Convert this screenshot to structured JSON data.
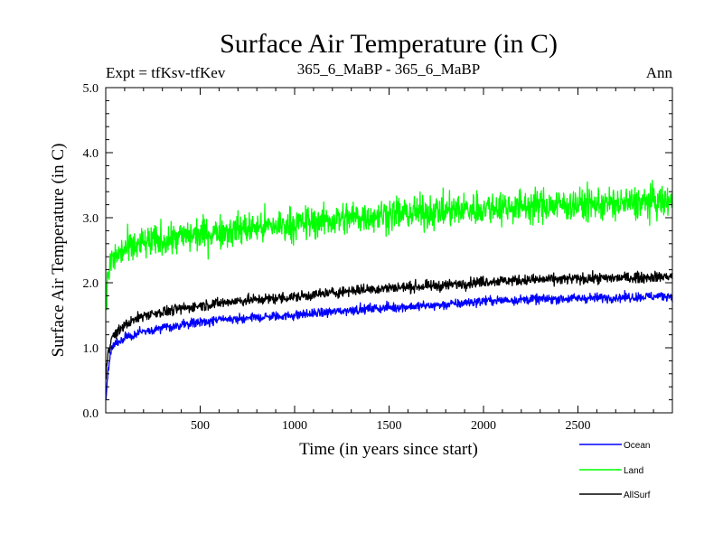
{
  "chart_data": {
    "type": "line",
    "title": "Surface Air Temperature (in C)",
    "subtitle_left": "Expt = tfKsv-tfKev",
    "subtitle_center": "365_6_MaBP - 365_6_MaBP",
    "subtitle_right": "Ann",
    "xlabel": "Time (in years since start)",
    "ylabel": "Surface Air Temperature (in C)",
    "xlim": [
      0,
      3000
    ],
    "ylim": [
      0,
      5
    ],
    "x_ticks": [
      500,
      1000,
      1500,
      2000,
      2500
    ],
    "x_tick_labels": [
      "500",
      "1000",
      "1500",
      "2000",
      "2500"
    ],
    "y_ticks": [
      0,
      1,
      2,
      3,
      4,
      5
    ],
    "y_tick_labels": [
      "0.0",
      "1.0",
      "2.0",
      "3.0",
      "4.0",
      "5.0"
    ],
    "legend_position": "bottom-right, below plot",
    "series": [
      {
        "name": "Ocean",
        "color": "#0000ff",
        "x": [
          0,
          10,
          30,
          50,
          100,
          200,
          300,
          500,
          700,
          1000,
          1300,
          1500,
          1800,
          2000,
          2200,
          2500,
          2800,
          3000
        ],
        "values": [
          0.15,
          0.6,
          1.0,
          1.05,
          1.15,
          1.25,
          1.3,
          1.4,
          1.45,
          1.5,
          1.58,
          1.62,
          1.66,
          1.72,
          1.74,
          1.76,
          1.78,
          1.8
        ],
        "noise": 0.07
      },
      {
        "name": "Land",
        "color": "#00ff00",
        "x": [
          0,
          10,
          30,
          50,
          100,
          200,
          300,
          500,
          700,
          1000,
          1300,
          1500,
          1800,
          2000,
          2200,
          2500,
          2800,
          3000
        ],
        "values": [
          1.5,
          2.1,
          2.35,
          2.4,
          2.5,
          2.6,
          2.65,
          2.75,
          2.82,
          2.9,
          3.0,
          3.05,
          3.1,
          3.15,
          3.18,
          3.2,
          3.22,
          3.25
        ],
        "noise": 0.25
      },
      {
        "name": "AllSurf",
        "color": "#000000",
        "x": [
          0,
          10,
          30,
          50,
          100,
          200,
          300,
          500,
          700,
          1000,
          1300,
          1500,
          1800,
          2000,
          2200,
          2500,
          2800,
          3000
        ],
        "values": [
          0.5,
          0.9,
          1.15,
          1.2,
          1.35,
          1.5,
          1.55,
          1.65,
          1.72,
          1.78,
          1.88,
          1.92,
          1.96,
          2.02,
          2.04,
          2.06,
          2.08,
          2.1
        ],
        "noise": 0.08
      }
    ]
  }
}
